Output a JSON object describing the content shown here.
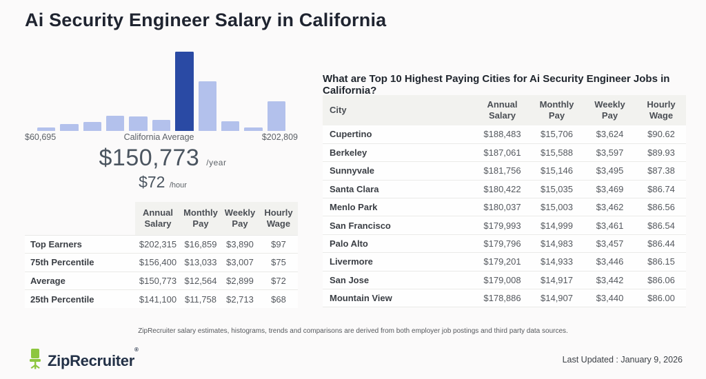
{
  "theme": {
    "bar_light": "#b3c1ec",
    "bar_dark": "#2a4aa4",
    "header_bg": "#f2f2ef",
    "brand_green": "#8dc63f",
    "title_color": "#1f2430"
  },
  "page": {
    "title": "Ai Security Engineer Salary in California",
    "disclaimer": "ZipRecruiter salary estimates, histograms, trends and comparisons are derived from both employer job postings and third party data sources.",
    "last_updated": "Last Updated : January 9, 2026",
    "brand_name": "ZipRecruiter",
    "brand_reg": "®"
  },
  "chart_data": {
    "type": "bar",
    "title": "Ai Security Engineer salary distribution in California",
    "values": [
      4,
      9,
      11,
      19,
      18,
      14,
      100,
      63,
      12,
      4,
      37
    ],
    "highlight_index": 6,
    "x_min_label": "$60,695",
    "x_mid_label": "California Average",
    "x_max_label": "$202,809",
    "bar_color": "#b3c1ec",
    "highlight_color": "#2a4aa4",
    "average_annual": "$150,773",
    "average_annual_unit": "/year",
    "average_hourly": "$72",
    "average_hourly_unit": "/hour"
  },
  "percentile_table": {
    "headers": [
      {
        "line1": "Annual",
        "line2": "Salary"
      },
      {
        "line1": "Monthly",
        "line2": "Pay"
      },
      {
        "line1": "Weekly",
        "line2": "Pay"
      },
      {
        "line1": "Hourly",
        "line2": "Wage"
      }
    ],
    "rows": [
      {
        "label": "Top Earners",
        "annual": "$202,315",
        "monthly": "$16,859",
        "weekly": "$3,890",
        "hourly": "$97"
      },
      {
        "label": "75th Percentile",
        "annual": "$156,400",
        "monthly": "$13,033",
        "weekly": "$3,007",
        "hourly": "$75"
      },
      {
        "label": "Average",
        "annual": "$150,773",
        "monthly": "$12,564",
        "weekly": "$2,899",
        "hourly": "$72"
      },
      {
        "label": "25th Percentile",
        "annual": "$141,100",
        "monthly": "$11,758",
        "weekly": "$2,713",
        "hourly": "$68"
      }
    ]
  },
  "cities_section": {
    "heading": "What are Top 10 Highest Paying Cities for Ai Security Engineer Jobs in California?",
    "city_header": "City",
    "headers": [
      {
        "line1": "Annual",
        "line2": "Salary"
      },
      {
        "line1": "Monthly",
        "line2": "Pay"
      },
      {
        "line1": "Weekly",
        "line2": "Pay"
      },
      {
        "line1": "Hourly",
        "line2": "Wage"
      }
    ],
    "rows": [
      {
        "city": "Cupertino",
        "annual": "$188,483",
        "monthly": "$15,706",
        "weekly": "$3,624",
        "hourly": "$90.62"
      },
      {
        "city": "Berkeley",
        "annual": "$187,061",
        "monthly": "$15,588",
        "weekly": "$3,597",
        "hourly": "$89.93"
      },
      {
        "city": "Sunnyvale",
        "annual": "$181,756",
        "monthly": "$15,146",
        "weekly": "$3,495",
        "hourly": "$87.38"
      },
      {
        "city": "Santa Clara",
        "annual": "$180,422",
        "monthly": "$15,035",
        "weekly": "$3,469",
        "hourly": "$86.74"
      },
      {
        "city": "Menlo Park",
        "annual": "$180,037",
        "monthly": "$15,003",
        "weekly": "$3,462",
        "hourly": "$86.56"
      },
      {
        "city": "San Francisco",
        "annual": "$179,993",
        "monthly": "$14,999",
        "weekly": "$3,461",
        "hourly": "$86.54"
      },
      {
        "city": "Palo Alto",
        "annual": "$179,796",
        "monthly": "$14,983",
        "weekly": "$3,457",
        "hourly": "$86.44"
      },
      {
        "city": "Livermore",
        "annual": "$179,201",
        "monthly": "$14,933",
        "weekly": "$3,446",
        "hourly": "$86.15"
      },
      {
        "city": "San Jose",
        "annual": "$179,008",
        "monthly": "$14,917",
        "weekly": "$3,442",
        "hourly": "$86.06"
      },
      {
        "city": "Mountain View",
        "annual": "$178,886",
        "monthly": "$14,907",
        "weekly": "$3,440",
        "hourly": "$86.00"
      }
    ]
  }
}
